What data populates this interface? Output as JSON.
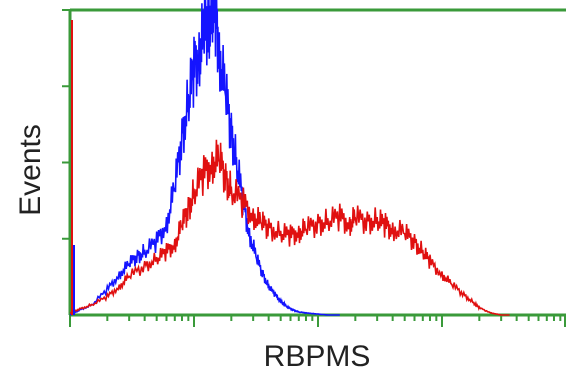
{
  "chart_data": {
    "type": "line",
    "title": "",
    "xlabel": "RBPMS",
    "ylabel": "Events",
    "xscale": "log",
    "xlim": [
      1,
      10000
    ],
    "ylim": [
      0,
      300
    ],
    "grid": false,
    "legend": "none",
    "axis_color": "#3a9a3a",
    "series": [
      {
        "color": "#1414ff",
        "x": [
          1,
          1.2,
          1.5,
          2,
          2.5,
          3,
          3.5,
          4,
          5,
          6,
          7,
          8,
          9,
          10,
          11,
          12,
          13,
          14,
          15,
          16,
          18,
          20,
          22,
          25,
          28,
          32,
          36,
          40,
          45,
          50,
          56,
          63,
          70,
          80,
          100,
          120,
          150
        ],
        "values": [
          0,
          5,
          10,
          25,
          40,
          50,
          58,
          62,
          72,
          90,
          125,
          175,
          210,
          240,
          260,
          275,
          290,
          300,
          295,
          260,
          215,
          180,
          150,
          110,
          80,
          55,
          40,
          28,
          20,
          14,
          8,
          5,
          3,
          2,
          1,
          0,
          0
        ]
      },
      {
        "color": "#e01010",
        "x": [
          1,
          1.2,
          1.5,
          2,
          2.5,
          3,
          4,
          5,
          6,
          7,
          8,
          9,
          10,
          12,
          14,
          16,
          18,
          20,
          25,
          30,
          35,
          40,
          50,
          60,
          70,
          80,
          100,
          120,
          150,
          180,
          200,
          250,
          300,
          350,
          400,
          500,
          600,
          700,
          800,
          1000,
          1200,
          1500,
          1800,
          2000,
          2500,
          3000,
          3500
        ],
        "values": [
          2,
          6,
          10,
          18,
          28,
          38,
          48,
          55,
          62,
          70,
          88,
          105,
          120,
          138,
          150,
          152,
          135,
          122,
          110,
          98,
          90,
          86,
          80,
          78,
          82,
          84,
          90,
          92,
          96,
          90,
          95,
          92,
          93,
          88,
          85,
          80,
          72,
          62,
          52,
          40,
          30,
          20,
          12,
          7,
          2,
          0,
          0
        ]
      }
    ]
  }
}
